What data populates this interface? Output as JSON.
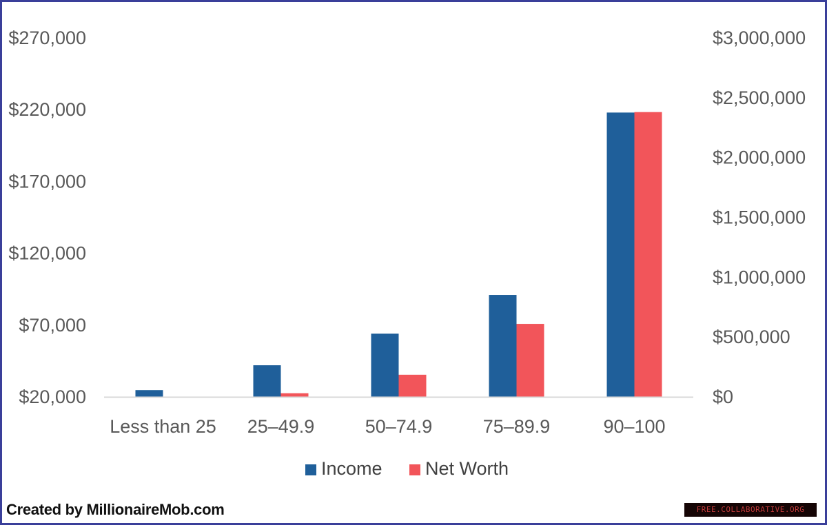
{
  "chart_data": {
    "type": "bar",
    "categories": [
      "Less than 25",
      "25–49.9",
      "50–74.9",
      "75–89.9",
      "90–100"
    ],
    "series": [
      {
        "name": "Income",
        "axis": "left",
        "color": "#1f5f9a",
        "values": [
          24700,
          42000,
          64000,
          91000,
          218000
        ]
      },
      {
        "name": "Net Worth",
        "axis": "right",
        "color": "#f2555a",
        "values": [
          0,
          30000,
          185000,
          610000,
          2380000
        ]
      }
    ],
    "y_left": {
      "min": 20000,
      "max": 270000,
      "ticks": [
        20000,
        70000,
        120000,
        170000,
        220000,
        270000
      ],
      "tick_labels": [
        "$20,000",
        "$70,000",
        "$120,000",
        "$170,000",
        "$220,000",
        "$270,000"
      ]
    },
    "y_right": {
      "min": 0,
      "max": 3000000,
      "ticks": [
        0,
        500000,
        1000000,
        1500000,
        2000000,
        2500000,
        3000000
      ],
      "tick_labels": [
        "$0",
        "$500,000",
        "$1,000,000",
        "$1,500,000",
        "$2,000,000",
        "$2,500,000",
        "$3,000,000"
      ]
    },
    "grid": false,
    "legend_position": "bottom"
  },
  "credit_text": "Created by MillionaireMob.com",
  "watermark_text": "FREE.COLLABORATIVE.ORG",
  "colors": {
    "frame_border": "#3a3f9a",
    "axis_line": "#d9d9d9"
  }
}
